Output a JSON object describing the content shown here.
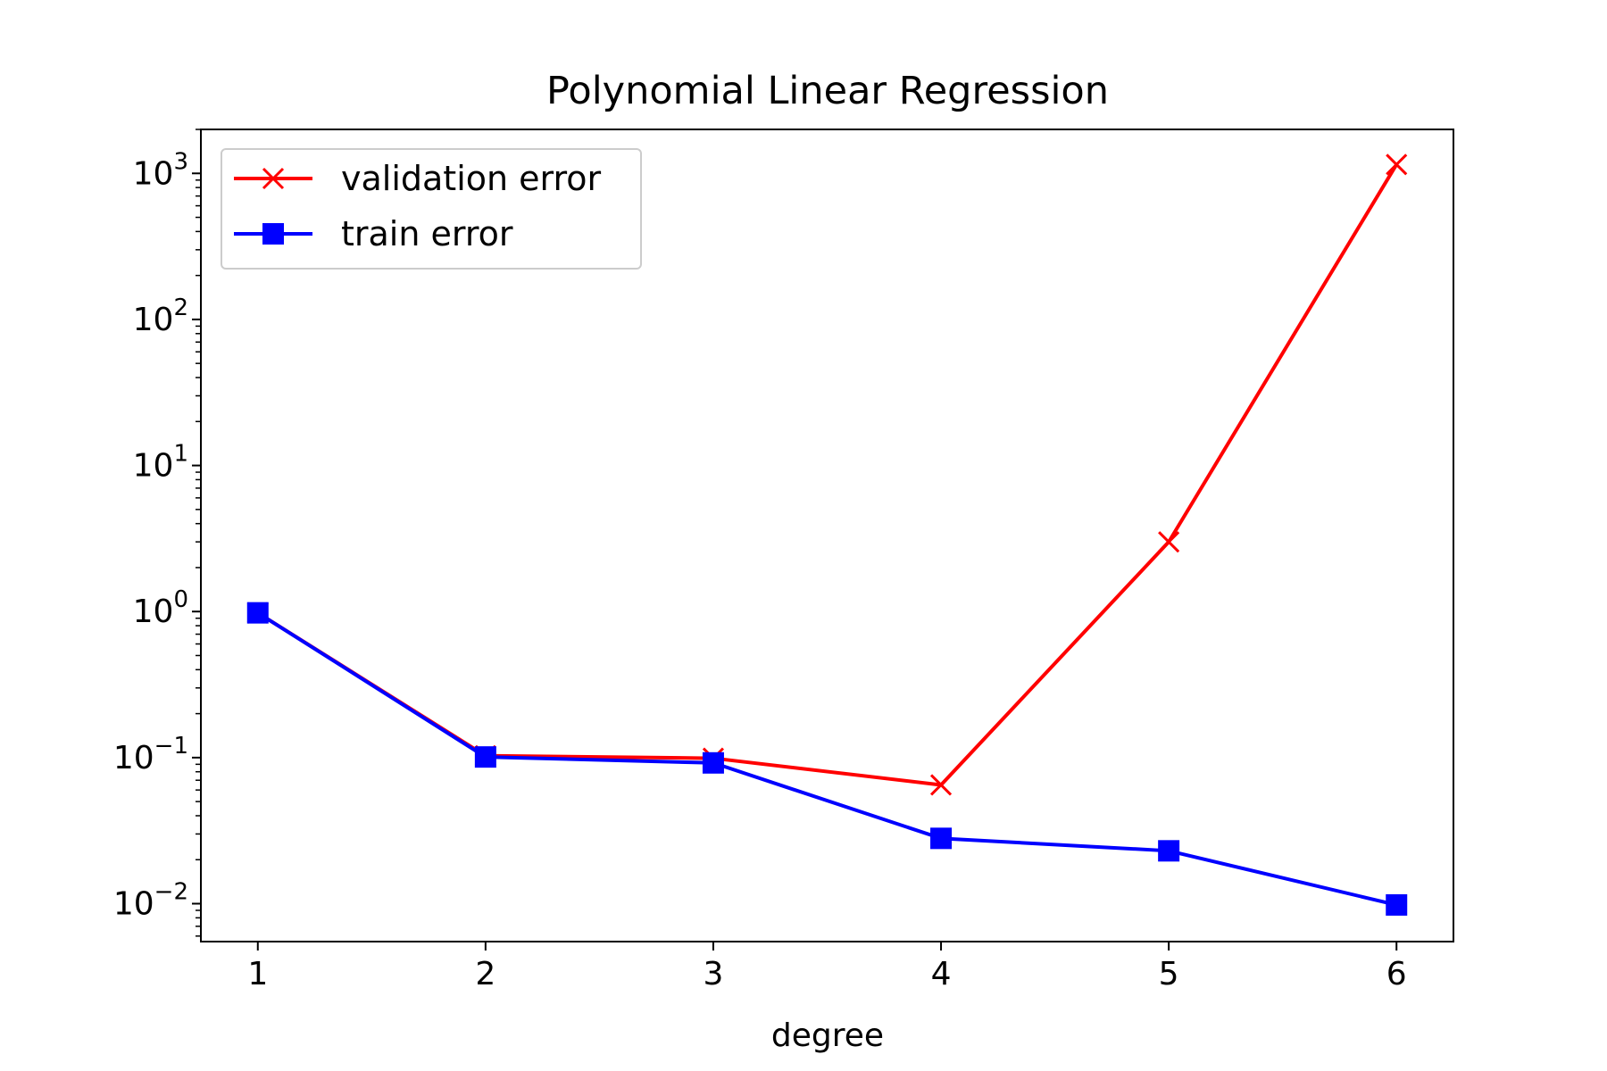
{
  "chart_data": {
    "type": "line",
    "title": "Polynomial Linear Regression",
    "xlabel": "degree",
    "ylabel": "",
    "yscale": "log",
    "x": [
      1,
      2,
      3,
      4,
      5,
      6
    ],
    "xticks": [
      "1",
      "2",
      "3",
      "4",
      "5",
      "6"
    ],
    "yticks": [
      {
        "base": "10",
        "exp": "−2",
        "value": 0.01
      },
      {
        "base": "10",
        "exp": "−1",
        "value": 0.1
      },
      {
        "base": "10",
        "exp": "0",
        "value": 1
      },
      {
        "base": "10",
        "exp": "1",
        "value": 10
      },
      {
        "base": "10",
        "exp": "2",
        "value": 100
      },
      {
        "base": "10",
        "exp": "3",
        "value": 1000
      }
    ],
    "xlim": [
      0.75,
      6.25
    ],
    "ylim": [
      0.0055,
      2000
    ],
    "grid": false,
    "legend_position": "top-left",
    "series": [
      {
        "name": "validation error",
        "color": "#ff0000",
        "marker": "x",
        "values": [
          0.98,
          0.103,
          0.099,
          0.065,
          3.0,
          1150
        ]
      },
      {
        "name": "train error",
        "color": "#0000ff",
        "marker": "square",
        "values": [
          0.98,
          0.101,
          0.092,
          0.028,
          0.023,
          0.0098
        ]
      }
    ]
  }
}
